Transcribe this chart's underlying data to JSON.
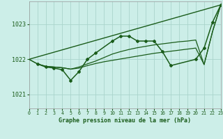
{
  "title": "Graphe pression niveau de la mer (hPa)",
  "bg_color": "#cceee8",
  "grid_color": "#aad4cc",
  "line_color": "#1a5c1a",
  "xlim": [
    0,
    23
  ],
  "ylim": [
    1020.6,
    1023.65
  ],
  "yticks": [
    1021,
    1022,
    1023
  ],
  "xticks": [
    0,
    1,
    2,
    3,
    4,
    5,
    6,
    7,
    8,
    9,
    10,
    11,
    12,
    13,
    14,
    15,
    16,
    17,
    18,
    19,
    20,
    21,
    22,
    23
  ],
  "line1_x": [
    0,
    23
  ],
  "line1_y": [
    1022.0,
    1023.55
  ],
  "line2_x": [
    0,
    1,
    2,
    3,
    4,
    5,
    6,
    7,
    8,
    9,
    10,
    11,
    12,
    13,
    14,
    15,
    16,
    17,
    18,
    19,
    20,
    21,
    22,
    23
  ],
  "line2_y": [
    1022.0,
    1021.87,
    1021.8,
    1021.78,
    1021.76,
    1021.72,
    1021.75,
    1021.82,
    1021.88,
    1021.93,
    1021.97,
    1022.01,
    1022.05,
    1022.09,
    1022.13,
    1022.17,
    1022.2,
    1022.23,
    1022.26,
    1022.29,
    1022.32,
    1021.85,
    1022.78,
    1023.55
  ],
  "line3_x": [
    0,
    1,
    2,
    3,
    4,
    5,
    6,
    7,
    8,
    9,
    10,
    11,
    12,
    13,
    14,
    15,
    16,
    17,
    18,
    19,
    20,
    21,
    22,
    23
  ],
  "line3_y": [
    1022.0,
    1021.87,
    1021.8,
    1021.78,
    1021.76,
    1021.72,
    1021.78,
    1021.87,
    1021.95,
    1022.05,
    1022.15,
    1022.22,
    1022.28,
    1022.33,
    1022.37,
    1022.41,
    1022.44,
    1022.47,
    1022.5,
    1022.52,
    1022.55,
    1021.85,
    1022.78,
    1023.55
  ],
  "line4_x": [
    1,
    2,
    3,
    4,
    5,
    6,
    7,
    8,
    10,
    11,
    12,
    13,
    14,
    15,
    16,
    17,
    20,
    21,
    22,
    23
  ],
  "line4_y": [
    1021.87,
    1021.78,
    1021.75,
    1021.7,
    1021.4,
    1021.65,
    1022.0,
    1022.18,
    1022.52,
    1022.66,
    1022.66,
    1022.52,
    1022.52,
    1022.52,
    1022.22,
    1021.82,
    1022.0,
    1022.32,
    1023.05,
    1023.55
  ]
}
